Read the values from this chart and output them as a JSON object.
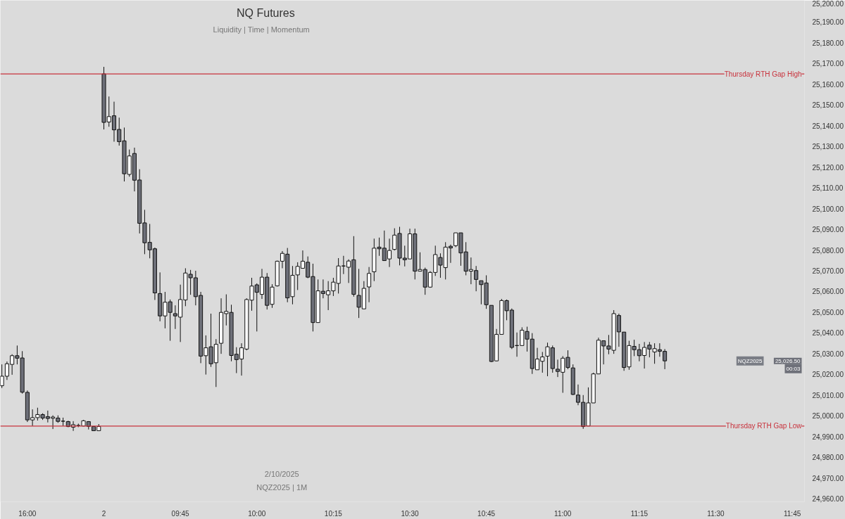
{
  "chart_data": {
    "type": "candlestick",
    "title": "NQ Futures",
    "subtitle": "Liquidity  |  Time  |  Momentum",
    "categories": [
      null,
      null,
      null,
      null,
      null,
      "16:00",
      null,
      null,
      null,
      null,
      null,
      null,
      null,
      null,
      null,
      null,
      null,
      null,
      null,
      null,
      "2",
      null,
      null,
      null,
      null,
      null,
      null,
      null,
      null,
      null,
      null,
      null,
      null,
      null,
      null,
      "09:45",
      null,
      null,
      null,
      null,
      null,
      null,
      null,
      null,
      null,
      null,
      null,
      null,
      null,
      null,
      "10:00",
      null,
      null,
      null,
      null,
      null,
      null,
      null,
      null,
      null,
      null,
      null,
      null,
      null,
      null,
      "10:15",
      null,
      null,
      null,
      null,
      null,
      null,
      null,
      null,
      null,
      null,
      null,
      null,
      null,
      null,
      "10:30",
      null,
      null,
      null,
      null,
      null,
      null,
      null,
      null,
      null,
      null,
      null,
      null,
      null,
      null,
      "10:45",
      null,
      null,
      null,
      null,
      null,
      null,
      null,
      null,
      null,
      null,
      null,
      null,
      null,
      null,
      "11:00",
      null,
      null,
      null,
      null,
      null,
      null,
      null,
      null,
      null,
      null,
      null,
      null,
      null,
      null,
      "11:15",
      null,
      null,
      null,
      null,
      null,
      null,
      null,
      null,
      null,
      null,
      null,
      null,
      null,
      null,
      "11:30",
      null,
      null,
      null,
      null,
      null,
      null,
      null,
      null,
      null,
      null,
      null,
      null,
      null,
      null,
      "11:45",
      null,
      null
    ],
    "ohlc": [
      [
        25014.5,
        25024.8,
        25013.4,
        25019.1
      ],
      [
        25019.1,
        25026.2,
        25017.3,
        25025.1
      ],
      [
        25024.8,
        25029.7,
        25019.8,
        25029.0
      ],
      [
        25029.0,
        25033.9,
        25024.8,
        25027.8
      ],
      [
        25027.9,
        25031.2,
        25010.7,
        25011.4
      ],
      [
        25011.3,
        25012.2,
        24997.0,
        24998.0
      ],
      [
        24998.0,
        25003.1,
        24995.1,
        24999.1
      ],
      [
        24999.1,
        25003.9,
        24997.7,
        25000.6
      ],
      [
        25000.6,
        25001.2,
        24998.0,
        24998.9
      ],
      [
        24999.6,
        25002.5,
        24996.8,
        24998.7
      ],
      [
        24998.8,
        25000.2,
        24993.6,
        24999.4
      ],
      [
        24998.9,
        25000.2,
        24996.6,
        24997.3
      ],
      [
        24997.4,
        24999.1,
        24995.1,
        24997.4
      ],
      [
        24997.2,
        24997.6,
        24994.5,
        24994.8
      ],
      [
        24994.5,
        24997.4,
        24992.7,
        24995.7
      ],
      [
        24995.3,
        24996.2,
        24994.5,
        24995.3
      ],
      [
        24995.1,
        24998.0,
        24994.9,
        24997.6
      ],
      [
        24997.2,
        24997.4,
        24993.4,
        24994.9
      ],
      [
        24994.8,
        24994.8,
        24992.7,
        24992.8
      ],
      [
        24992.8,
        24996.0,
        24992.7,
        24994.8
      ],
      [
        25165.0,
        25168.4,
        25138.2,
        25141.6
      ],
      [
        25141.8,
        25154.1,
        25139.5,
        25144.4
      ],
      [
        25144.8,
        25151.6,
        25132.3,
        25138.0
      ],
      [
        25138.2,
        25143.9,
        25130.4,
        25132.3
      ],
      [
        25132.7,
        25139.1,
        25113.1,
        25116.8
      ],
      [
        25116.5,
        25128.5,
        25115.4,
        25125.4
      ],
      [
        25126.6,
        25129.4,
        25108.3,
        25113.7
      ],
      [
        25113.8,
        25119.0,
        25088.0,
        25092.9
      ],
      [
        25093.1,
        25099.4,
        25078.0,
        25083.5
      ],
      [
        25083.7,
        25092.6,
        25076.0,
        25080.1
      ],
      [
        25080.6,
        25081.2,
        25055.9,
        25059.3
      ],
      [
        25059.0,
        25069.2,
        25045.6,
        25048.2
      ],
      [
        25048.2,
        25059.8,
        25042.2,
        25054.8
      ],
      [
        25055.0,
        25056.1,
        25036.2,
        25049.9
      ],
      [
        25049.3,
        25053.3,
        25041.9,
        25048.2
      ],
      [
        25047.6,
        25063.3,
        25035.6,
        25056.1
      ],
      [
        25055.9,
        25071.2,
        25052.9,
        25068.9
      ],
      [
        25068.3,
        25070.4,
        25058.4,
        25066.6
      ],
      [
        25066.6,
        25070.0,
        25053.3,
        25057.5
      ],
      [
        25058.1,
        25059.8,
        25025.4,
        25028.8
      ],
      [
        25029.0,
        25038.8,
        25019.9,
        25032.8
      ],
      [
        25033.3,
        25049.3,
        25023.6,
        25025.1
      ],
      [
        25025.6,
        25037.0,
        25013.9,
        25034.5
      ],
      [
        25035.0,
        25056.7,
        25029.9,
        25049.9
      ],
      [
        25049.3,
        25058.6,
        25043.6,
        25050.4
      ],
      [
        25049.9,
        25053.6,
        25026.3,
        25029.1
      ],
      [
        25029.7,
        25033.1,
        25020.6,
        25027.1
      ],
      [
        25027.4,
        25035.0,
        25019.4,
        25032.8
      ],
      [
        25032.2,
        25056.7,
        25031.6,
        25056.1
      ],
      [
        25055.8,
        25066.6,
        25050.7,
        25062.6
      ],
      [
        25063.2,
        25063.9,
        25040.7,
        25059.6
      ],
      [
        25058.6,
        25070.9,
        25056.4,
        25066.9
      ],
      [
        25066.9,
        25068.9,
        25051.3,
        25053.3
      ],
      [
        25053.8,
        25063.5,
        25052.1,
        25062.1
      ],
      [
        25062.7,
        25074.9,
        25062.4,
        25074.6
      ],
      [
        25074.6,
        25079.5,
        25071.2,
        25078.4
      ],
      [
        25078.0,
        25081.0,
        25054.8,
        25056.9
      ],
      [
        25057.5,
        25072.3,
        25053.8,
        25067.8
      ],
      [
        25068.0,
        25074.1,
        25060.7,
        25072.1
      ],
      [
        25071.2,
        25079.8,
        25071.2,
        25074.6
      ],
      [
        25074.1,
        25076.9,
        25066.4,
        25066.9
      ],
      [
        25067.2,
        25073.4,
        25040.7,
        25045.0
      ],
      [
        25045.0,
        25065.8,
        25045.0,
        25060.3
      ],
      [
        25060.1,
        25065.8,
        25056.7,
        25059.0
      ],
      [
        25058.4,
        25065.0,
        25051.0,
        25060.3
      ],
      [
        25060.3,
        25066.6,
        25057.8,
        25064.5
      ],
      [
        25063.9,
        25076.1,
        25059.0,
        25072.3
      ],
      [
        25072.3,
        25077.2,
        25068.4,
        25072.3
      ],
      [
        25071.7,
        25075.5,
        25064.1,
        25074.7
      ],
      [
        25075.3,
        25086.7,
        25057.5,
        25058.6
      ],
      [
        25058.1,
        25070.9,
        25047.2,
        25052.4
      ],
      [
        25051.6,
        25065.0,
        25051.6,
        25061.5
      ],
      [
        25062.2,
        25071.8,
        25054.8,
        25068.7
      ],
      [
        25069.5,
        25085.5,
        25065.0,
        25080.9
      ],
      [
        25081.4,
        25086.0,
        25077.2,
        25080.6
      ],
      [
        25080.9,
        25089.4,
        25074.9,
        25074.9
      ],
      [
        25075.7,
        25085.5,
        25071.8,
        25079.8
      ],
      [
        25080.3,
        25090.5,
        25079.8,
        25087.2
      ],
      [
        25088.0,
        25091.2,
        25072.6,
        25076.1
      ],
      [
        25076.1,
        25082.1,
        25072.1,
        25075.3
      ],
      [
        25075.7,
        25090.3,
        25075.7,
        25087.8
      ],
      [
        25087.8,
        25090.3,
        25065.8,
        25069.8
      ],
      [
        25069.8,
        25078.9,
        25069.8,
        25070.6
      ],
      [
        25070.6,
        25071.5,
        25058.4,
        25062.1
      ],
      [
        25062.1,
        25069.8,
        25061.8,
        25069.2
      ],
      [
        25069.2,
        25082.1,
        25067.5,
        25077.8
      ],
      [
        25076.4,
        25078.4,
        25066.6,
        25072.7
      ],
      [
        25071.5,
        25083.8,
        25065.8,
        25081.4
      ],
      [
        25081.8,
        25082.6,
        25073.8,
        25081.0
      ],
      [
        25082.1,
        25088.3,
        25081.4,
        25088.3
      ],
      [
        25088.3,
        25088.3,
        25072.4,
        25078.6
      ],
      [
        25079.1,
        25083.8,
        25067.8,
        25069.8
      ],
      [
        25069.8,
        25076.4,
        25063.5,
        25070.6
      ],
      [
        25070.1,
        25072.3,
        25060.1,
        25065.8
      ],
      [
        25065.2,
        25065.2,
        25053.8,
        25063.3
      ],
      [
        25064.1,
        25067.8,
        25051.6,
        25053.6
      ],
      [
        25053.3,
        25053.3,
        25025.9,
        25026.2
      ],
      [
        25026.5,
        25041.9,
        25026.3,
        25039.3
      ],
      [
        25039.3,
        25056.4,
        25039.3,
        25055.6
      ],
      [
        25055.6,
        25056.1,
        25046.1,
        25050.7
      ],
      [
        25051.0,
        25051.8,
        25032.2,
        25033.0
      ],
      [
        25033.9,
        25040.2,
        25028.5,
        25033.9
      ],
      [
        25033.9,
        25042.7,
        25033.9,
        25041.3
      ],
      [
        25040.7,
        25043.0,
        25031.0,
        25037.0
      ],
      [
        25037.0,
        25039.9,
        25020.2,
        25022.8
      ],
      [
        25022.2,
        25032.8,
        25022.2,
        25027.4
      ],
      [
        25026.3,
        25030.8,
        25020.8,
        25028.4
      ],
      [
        25028.8,
        25035.3,
        25019.1,
        25033.3
      ],
      [
        25032.8,
        25033.9,
        25020.8,
        25022.8
      ],
      [
        25022.5,
        25027.1,
        25018.7,
        25021.4
      ],
      [
        25021.0,
        25028.8,
        25011.1,
        25027.8
      ],
      [
        25028.2,
        25031.6,
        25022.5,
        25023.3
      ],
      [
        25023.1,
        25024.8,
        25010.0,
        25010.3
      ],
      [
        25010.0,
        25015.1,
        25005.1,
        25006.5
      ],
      [
        25006.5,
        25010.0,
        24993.7,
        24994.8
      ],
      [
        24995.1,
        25013.7,
        24995.1,
        25006.2
      ],
      [
        25006.2,
        25020.8,
        25006.2,
        25020.2
      ],
      [
        25020.2,
        25037.7,
        25020.2,
        25036.5
      ],
      [
        25036.2,
        25036.2,
        25024.8,
        25033.7
      ],
      [
        25033.7,
        25039.0,
        25029.7,
        25032.2
      ],
      [
        25031.6,
        25051.0,
        25029.9,
        25049.3
      ],
      [
        25048.4,
        25049.3,
        25033.3,
        25040.5
      ],
      [
        25040.4,
        25040.4,
        25021.7,
        25023.3
      ],
      [
        25023.6,
        25036.2,
        25022.2,
        25033.9
      ],
      [
        25033.5,
        25036.7,
        25028.8,
        25031.9
      ],
      [
        25031.9,
        25034.7,
        25026.3,
        25029.0
      ],
      [
        25029.1,
        25035.6,
        25022.8,
        25033.0
      ],
      [
        25034.1,
        25035.6,
        25028.2,
        25032.2
      ],
      [
        25030.8,
        25035.0,
        25025.1,
        25032.4
      ],
      [
        25031.9,
        25035.0,
        25028.5,
        25031.1
      ],
      [
        25031.1,
        25032.2,
        25022.5,
        25026.5
      ],
      null,
      null,
      null,
      null,
      null,
      null,
      null,
      null,
      null,
      null,
      null,
      null,
      null,
      null,
      null,
      null,
      null,
      null,
      null,
      null,
      null,
      null,
      null,
      null,
      null,
      null,
      null
    ],
    "colors": [
      "#ffffff",
      "#ffffff",
      "#ffffff",
      "#6e7079",
      "#6e7079",
      "#6e7079",
      "#ffffff",
      "#ffffff",
      "#6e7079",
      "#6e7079",
      "#ffffff",
      "#6e7079",
      "#111111",
      "#6e7079",
      "#ffffff",
      "#111111",
      "#ffffff",
      "#6e7079",
      "#6e7079",
      "#ffffff",
      "#6e7079",
      "#ffffff",
      "#6e7079",
      "#6e7079",
      "#6e7079",
      "#ffffff",
      "#6e7079",
      "#6e7079",
      "#6e7079",
      "#6e7079",
      "#6e7079",
      "#6e7079",
      "#ffffff",
      "#6e7079",
      "#6e7079",
      "#ffffff",
      "#ffffff",
      "#6e7079",
      "#6e7079",
      "#6e7079",
      "#ffffff",
      "#6e7079",
      "#ffffff",
      "#ffffff",
      "#ffffff",
      "#6e7079",
      "#6e7079",
      "#ffffff",
      "#ffffff",
      "#ffffff",
      "#6e7079",
      "#ffffff",
      "#6e7079",
      "#ffffff",
      "#ffffff",
      "#ffffff",
      "#6e7079",
      "#ffffff",
      "#ffffff",
      "#ffffff",
      "#6e7079",
      "#6e7079",
      "#ffffff",
      "#6e7079",
      "#ffffff",
      "#ffffff",
      "#ffffff",
      "#111111",
      "#ffffff",
      "#6e7079",
      "#6e7079",
      "#ffffff",
      "#ffffff",
      "#ffffff",
      "#6e7079",
      "#6e7079",
      "#ffffff",
      "#ffffff",
      "#6e7079",
      "#6e7079",
      "#ffffff",
      "#6e7079",
      "#ffffff",
      "#6e7079",
      "#ffffff",
      "#ffffff",
      "#6e7079",
      "#ffffff",
      "#6e7079",
      "#ffffff",
      "#6e7079",
      "#6e7079",
      "#ffffff",
      "#6e7079",
      "#6e7079",
      "#6e7079",
      "#6e7079",
      "#ffffff",
      "#ffffff",
      "#6e7079",
      "#6e7079",
      "#111111",
      "#ffffff",
      "#6e7079",
      "#6e7079",
      "#ffffff",
      "#ffffff",
      "#ffffff",
      "#6e7079",
      "#6e7079",
      "#ffffff",
      "#6e7079",
      "#6e7079",
      "#6e7079",
      "#6e7079",
      "#ffffff",
      "#ffffff",
      "#ffffff",
      "#6e7079",
      "#6e7079",
      "#ffffff",
      "#6e7079",
      "#6e7079",
      "#ffffff",
      "#6e7079",
      "#6e7079",
      "#ffffff",
      "#6e7079",
      "#ffffff",
      "#6e7079",
      "#6e7079",
      null,
      null,
      null,
      null,
      null,
      null,
      null,
      null,
      null,
      null,
      null,
      null,
      null,
      null,
      null,
      null,
      null,
      null,
      null,
      null,
      null,
      null,
      null,
      null,
      null,
      null,
      null
    ],
    "ylim": [
      24958.5,
      25200.5
    ],
    "yticks": [
      {
        "value": 24960,
        "label": "24,960.00"
      },
      {
        "value": 24970,
        "label": "24,970.00"
      },
      {
        "value": 24980,
        "label": "24,980.00"
      },
      {
        "value": 24990,
        "label": "24,990.00"
      },
      {
        "value": 25000,
        "label": "25,000.00"
      },
      {
        "value": 25010,
        "label": "25,010.00"
      },
      {
        "value": 25020,
        "label": "25,020.00"
      },
      {
        "value": 25030,
        "label": "25,030.00"
      },
      {
        "value": 25040,
        "label": "25,040.00"
      },
      {
        "value": 25050,
        "label": "25,050.00"
      },
      {
        "value": 25060,
        "label": "25,060.00"
      },
      {
        "value": 25070,
        "label": "25,070.00"
      },
      {
        "value": 25080,
        "label": "25,080.00"
      },
      {
        "value": 25090,
        "label": "25,090.00"
      },
      {
        "value": 25100,
        "label": "25,100.00"
      },
      {
        "value": 25110,
        "label": "25,110.00"
      },
      {
        "value": 25120,
        "label": "25,120.00"
      },
      {
        "value": 25130,
        "label": "25,130.00"
      },
      {
        "value": 25140,
        "label": "25,140.00"
      },
      {
        "value": 25150,
        "label": "25,150.00"
      },
      {
        "value": 25160,
        "label": "25,160.00"
      },
      {
        "value": 25170,
        "label": "25,170.00"
      },
      {
        "value": 25180,
        "label": "25,180.00"
      },
      {
        "value": 25190,
        "label": "25,190.00"
      },
      {
        "value": 25200,
        "label": "25,200.00"
      }
    ],
    "ref_lines": [
      {
        "axis": "y",
        "value": 25165,
        "label": "Thursday RTH Gap High",
        "color": "#c8323c"
      },
      {
        "axis": "y",
        "value": 24995,
        "label": "Thursday RTH Gap Low",
        "color": "#c8323c"
      }
    ],
    "annotations": [
      "NQZ2025",
      "25,026.50",
      "00:03",
      "2/10/2025",
      "NQZ2025 | 1M"
    ]
  }
}
